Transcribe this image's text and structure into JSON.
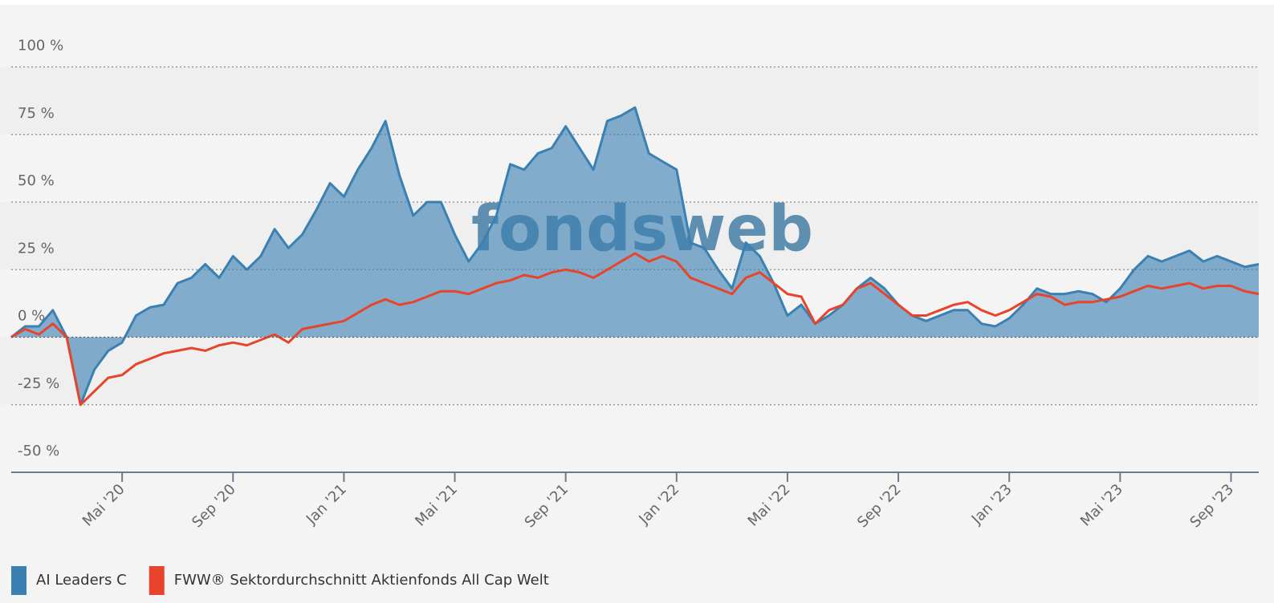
{
  "chart_data": {
    "type": "area",
    "watermark": "fondsweb",
    "categories": [
      null,
      null,
      null,
      null,
      null,
      null,
      null,
      null,
      "Mai '20",
      null,
      null,
      null,
      null,
      null,
      null,
      null,
      "Sep '20",
      null,
      null,
      null,
      null,
      null,
      null,
      null,
      "Jan '21",
      null,
      null,
      null,
      null,
      null,
      null,
      null,
      "Mai '21",
      null,
      null,
      null,
      null,
      null,
      null,
      null,
      "Sep '21",
      null,
      null,
      null,
      null,
      null,
      null,
      null,
      "Jan '22",
      null,
      null,
      null,
      null,
      null,
      null,
      null,
      "Mai '22",
      null,
      null,
      null,
      null,
      null,
      null,
      null,
      "Sep '22",
      null,
      null,
      null,
      null,
      null,
      null,
      null,
      "Jan '23",
      null,
      null,
      null,
      null,
      null,
      null,
      null,
      "Mai '23",
      null,
      null,
      null,
      null,
      null,
      null,
      null,
      "Sep '23",
      null,
      null
    ],
    "series": [
      {
        "name": "AI Leaders C",
        "color": "#3a80b2",
        "fill": true,
        "values": [
          0,
          4,
          4,
          10,
          0,
          -25,
          -12,
          -5,
          -2,
          8,
          11,
          12,
          20,
          22,
          27,
          22,
          30,
          25,
          30,
          40,
          33,
          38,
          47,
          57,
          52,
          62,
          70,
          80,
          60,
          45,
          50,
          50,
          38,
          28,
          35,
          45,
          64,
          62,
          68,
          70,
          78,
          70,
          62,
          80,
          82,
          85,
          68,
          65,
          62,
          35,
          33,
          25,
          18,
          35,
          30,
          20,
          8,
          12,
          5,
          8,
          12,
          18,
          22,
          18,
          12,
          8,
          6,
          8,
          10,
          10,
          5,
          4,
          7,
          12,
          18,
          16,
          16,
          17,
          16,
          13,
          18,
          25,
          30,
          28,
          30,
          32,
          28,
          30,
          28,
          26,
          27
        ]
      },
      {
        "name": "FWW® Sektordurchschnitt Aktienfonds All Cap Welt",
        "color": "#e8432b",
        "fill": false,
        "values": [
          0,
          3,
          1,
          5,
          0,
          -25,
          -20,
          -15,
          -14,
          -10,
          -8,
          -6,
          -5,
          -4,
          -5,
          -3,
          -2,
          -3,
          -1,
          1,
          -2,
          3,
          4,
          5,
          6,
          9,
          12,
          14,
          12,
          13,
          15,
          17,
          17,
          16,
          18,
          20,
          21,
          23,
          22,
          24,
          25,
          24,
          22,
          25,
          28,
          31,
          28,
          30,
          28,
          22,
          20,
          18,
          16,
          22,
          24,
          20,
          16,
          15,
          5,
          10,
          12,
          18,
          20,
          16,
          12,
          8,
          8,
          10,
          12,
          13,
          10,
          8,
          10,
          13,
          16,
          15,
          12,
          13,
          13,
          14,
          15,
          17,
          19,
          18,
          19,
          20,
          18,
          19,
          19,
          17,
          16
        ]
      }
    ],
    "ylim": [
      -50,
      123
    ],
    "yticks": [
      {
        "value": -50,
        "label": "-50 %"
      },
      {
        "value": -25,
        "label": "-25 %"
      },
      {
        "value": 0,
        "label": "0 %"
      },
      {
        "value": 25,
        "label": "25 %"
      },
      {
        "value": 50,
        "label": "50 %"
      },
      {
        "value": 75,
        "label": "75 %"
      },
      {
        "value": 100,
        "label": "100 %"
      }
    ],
    "grid": true
  }
}
